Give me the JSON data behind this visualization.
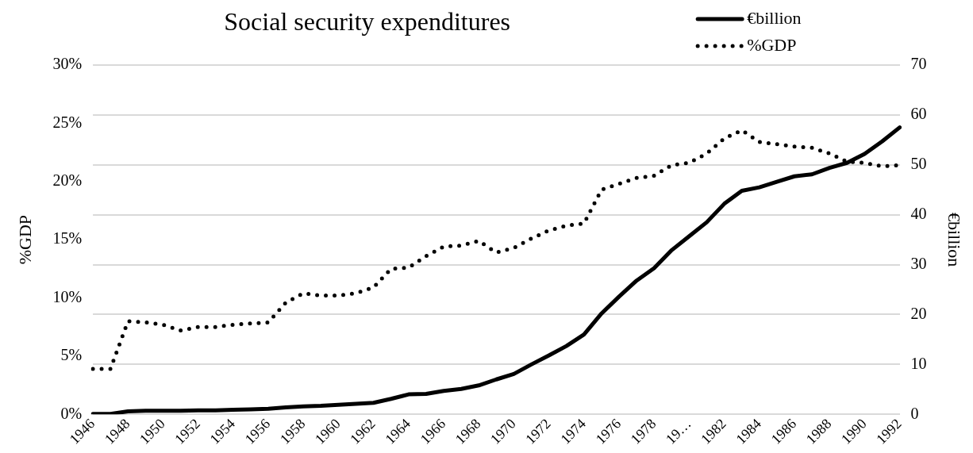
{
  "chart_data": {
    "type": "line",
    "title": "Social security expenditures",
    "categories": [
      "1946",
      null,
      "1948",
      null,
      "1950",
      null,
      "1952",
      null,
      "1954",
      null,
      "1956",
      null,
      "1958",
      null,
      "1960",
      null,
      "1962",
      null,
      "1964",
      null,
      "1966",
      null,
      "1968",
      null,
      "1970",
      null,
      "1972",
      null,
      "1974",
      null,
      "1976",
      null,
      "1978",
      null,
      "19…",
      null,
      "1982",
      null,
      "1984",
      null,
      "1986",
      null,
      "1988",
      null,
      "1990",
      null,
      "1992"
    ],
    "series": [
      {
        "name": "€billion",
        "color": "#000000",
        "axis": "y2",
        "line_style": "solid",
        "values": [
          0.1,
          0.1,
          0.6,
          0.7,
          0.7,
          0.7,
          0.8,
          0.8,
          0.9,
          1.0,
          1.1,
          1.4,
          1.6,
          1.7,
          1.9,
          2.1,
          2.3,
          3.1,
          4.0,
          4.1,
          4.7,
          5.1,
          5.8,
          7.0,
          8.1,
          10.0,
          11.8,
          13.7,
          16.0,
          20.2,
          23.6,
          26.8,
          29.3,
          32.9,
          35.7,
          38.5,
          42.2,
          44.8,
          45.5,
          46.6,
          47.7,
          48.1,
          49.4,
          50.4,
          52.2,
          54.7,
          57.5
        ]
      },
      {
        "name": "%GDP",
        "color": "#000000",
        "axis": "y",
        "line_style": "dotted",
        "values": [
          3.9,
          3.9,
          8.0,
          7.9,
          7.7,
          7.2,
          7.5,
          7.5,
          7.7,
          7.8,
          7.9,
          9.6,
          10.4,
          10.2,
          10.2,
          10.4,
          10.9,
          12.5,
          12.6,
          13.6,
          14.4,
          14.5,
          14.9,
          13.9,
          14.3,
          15.1,
          15.8,
          16.2,
          16.4,
          19.3,
          19.8,
          20.3,
          20.5,
          21.4,
          21.6,
          22.4,
          23.7,
          24.4,
          23.4,
          23.2,
          23.0,
          22.9,
          22.4,
          21.7,
          21.6,
          21.3,
          21.4
        ]
      }
    ],
    "ylabel": "%GDP",
    "y2label": "€billion",
    "ylim": [
      0,
      30
    ],
    "yticks": [
      {
        "value": 0,
        "label": "0%"
      },
      {
        "value": 5,
        "label": "5%"
      },
      {
        "value": 10,
        "label": "10%"
      },
      {
        "value": 15,
        "label": "15%"
      },
      {
        "value": 20,
        "label": "20%"
      },
      {
        "value": 25,
        "label": "25%"
      },
      {
        "value": 30,
        "label": "30%"
      }
    ],
    "y2lim": [
      0,
      70
    ],
    "y2ticks": [
      0,
      10,
      20,
      30,
      40,
      50,
      60,
      70
    ],
    "grid": "y2",
    "legend": "top right",
    "marker": "none"
  }
}
